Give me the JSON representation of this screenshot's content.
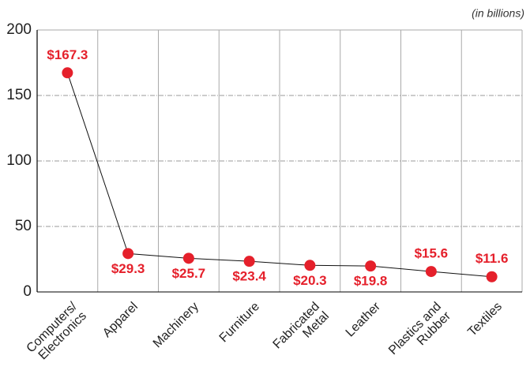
{
  "chart_data": {
    "type": "line",
    "annotation": "(in billions)",
    "categories": [
      "Computers/ Electronics",
      "Apparel",
      "Machinery",
      "Furniture",
      "Fabricated Metal",
      "Leather",
      "Plastics and Rubber",
      "Textiles"
    ],
    "values": [
      167.3,
      29.3,
      25.7,
      23.4,
      20.3,
      19.8,
      15.6,
      11.6
    ],
    "value_labels": [
      "$167.3",
      "$29.3",
      "$25.7",
      "$23.4",
      "$20.3",
      "$19.8",
      "$15.6",
      "$11.6"
    ],
    "color": "#e5202b",
    "ylim": [
      0,
      200
    ],
    "yticks": [
      0,
      50,
      100,
      150,
      200
    ],
    "grid": true
  }
}
